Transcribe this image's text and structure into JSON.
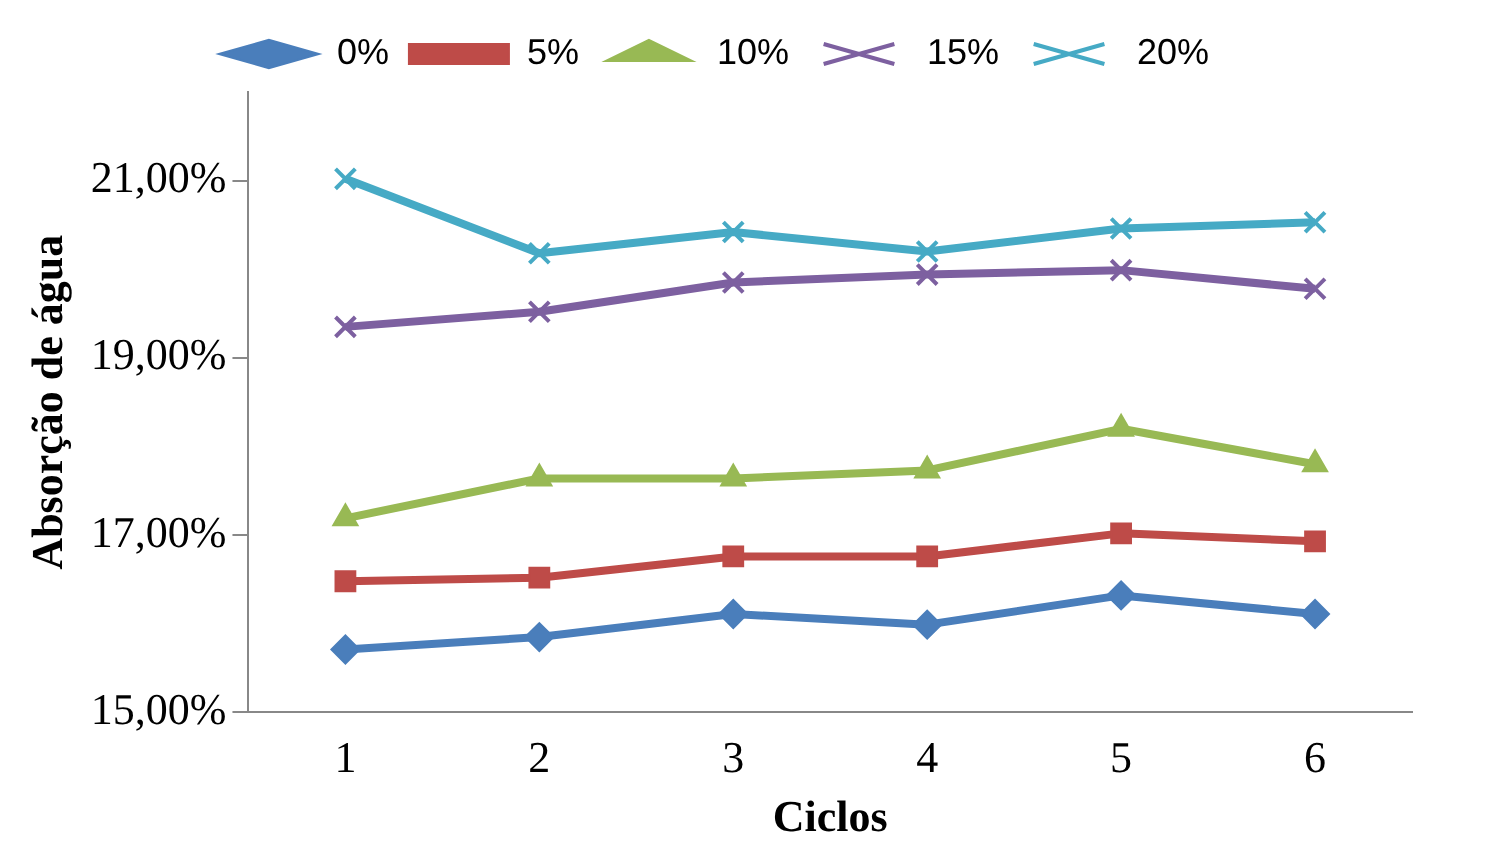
{
  "chart_data": {
    "type": "line",
    "xlabel": "Ciclos",
    "ylabel": "Absorção de água",
    "categories": [
      "1",
      "2",
      "3",
      "4",
      "5",
      "6"
    ],
    "ylim": [
      15,
      22
    ],
    "yticks": [
      {
        "value": 15,
        "label": "15,00%"
      },
      {
        "value": 17,
        "label": "17,00%"
      },
      {
        "value": 19,
        "label": "19,00%"
      },
      {
        "value": 21,
        "label": "21,00%"
      }
    ],
    "grid": false,
    "legend": "top",
    "line_style": "solid",
    "series": [
      {
        "name": "0%",
        "color": "#4a7ebb",
        "marker": "diamond",
        "values": [
          15.71,
          15.85,
          16.11,
          15.99,
          16.32,
          16.11
        ]
      },
      {
        "name": "5%",
        "color": "#be4b48",
        "marker": "square",
        "values": [
          16.48,
          16.52,
          16.76,
          16.76,
          17.02,
          16.93
        ]
      },
      {
        "name": "10%",
        "color": "#98b954",
        "marker": "triangle",
        "values": [
          17.19,
          17.64,
          17.64,
          17.73,
          18.2,
          17.8
        ]
      },
      {
        "name": "15%",
        "color": "#7d60a0",
        "marker": "cross",
        "values": [
          19.35,
          19.52,
          19.85,
          19.94,
          19.99,
          19.78
        ]
      },
      {
        "name": "20%",
        "color": "#46aac5",
        "marker": "cross",
        "values": [
          21.02,
          20.18,
          20.42,
          20.2,
          20.46,
          20.53
        ]
      }
    ]
  }
}
